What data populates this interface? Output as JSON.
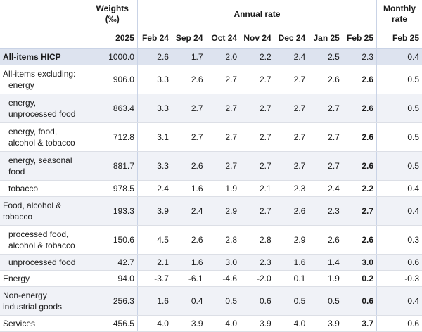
{
  "header": {
    "weights": "Weights (‰)",
    "annual": "Annual rate",
    "monthly": "Monthly rate",
    "columns": [
      "2025",
      "Feb 24",
      "Sep 24",
      "Oct 24",
      "Nov 24",
      "Dec 24",
      "Jan 25",
      "Feb 25",
      "Feb 25"
    ]
  },
  "rows": [
    {
      "label": "All-items HICP",
      "cells": [
        "1000.0",
        "2.6",
        "1.7",
        "2.0",
        "2.2",
        "2.4",
        "2.5",
        "2.3",
        "0.4"
      ]
    },
    {
      "label": "All-items excluding:",
      "label2": "energy",
      "cells": [
        "906.0",
        "3.3",
        "2.6",
        "2.7",
        "2.7",
        "2.7",
        "2.6",
        "2.6",
        "0.5"
      ]
    },
    {
      "label": "energy, unprocessed food",
      "cells": [
        "863.4",
        "3.3",
        "2.7",
        "2.7",
        "2.7",
        "2.7",
        "2.7",
        "2.6",
        "0.5"
      ]
    },
    {
      "label": "energy, food, alcohol & tobacco",
      "cells": [
        "712.8",
        "3.1",
        "2.7",
        "2.7",
        "2.7",
        "2.7",
        "2.7",
        "2.6",
        "0.5"
      ]
    },
    {
      "label": "energy, seasonal food",
      "cells": [
        "881.7",
        "3.3",
        "2.6",
        "2.7",
        "2.7",
        "2.7",
        "2.7",
        "2.6",
        "0.5"
      ]
    },
    {
      "label": "tobacco",
      "cells": [
        "978.5",
        "2.4",
        "1.6",
        "1.9",
        "2.1",
        "2.3",
        "2.4",
        "2.2",
        "0.4"
      ]
    },
    {
      "label": "Food, alcohol & tobacco",
      "cells": [
        "193.3",
        "3.9",
        "2.4",
        "2.9",
        "2.7",
        "2.6",
        "2.3",
        "2.7",
        "0.4"
      ]
    },
    {
      "label": "processed food, alcohol & tobacco",
      "cells": [
        "150.6",
        "4.5",
        "2.6",
        "2.8",
        "2.8",
        "2.9",
        "2.6",
        "2.6",
        "0.3"
      ]
    },
    {
      "label": "unprocessed food",
      "cells": [
        "42.7",
        "2.1",
        "1.6",
        "3.0",
        "2.3",
        "1.6",
        "1.4",
        "3.0",
        "0.6"
      ]
    },
    {
      "label": "Energy",
      "cells": [
        "94.0",
        "-3.7",
        "-6.1",
        "-4.6",
        "-2.0",
        "0.1",
        "1.9",
        "0.2",
        "-0.3"
      ]
    },
    {
      "label": "Non-energy industrial goods",
      "cells": [
        "256.3",
        "1.6",
        "0.4",
        "0.5",
        "0.6",
        "0.5",
        "0.5",
        "0.6",
        "0.4"
      ]
    },
    {
      "label": "Services",
      "cells": [
        "456.5",
        "4.0",
        "3.9",
        "4.0",
        "3.9",
        "4.0",
        "3.9",
        "3.7",
        "0.6"
      ]
    }
  ]
}
